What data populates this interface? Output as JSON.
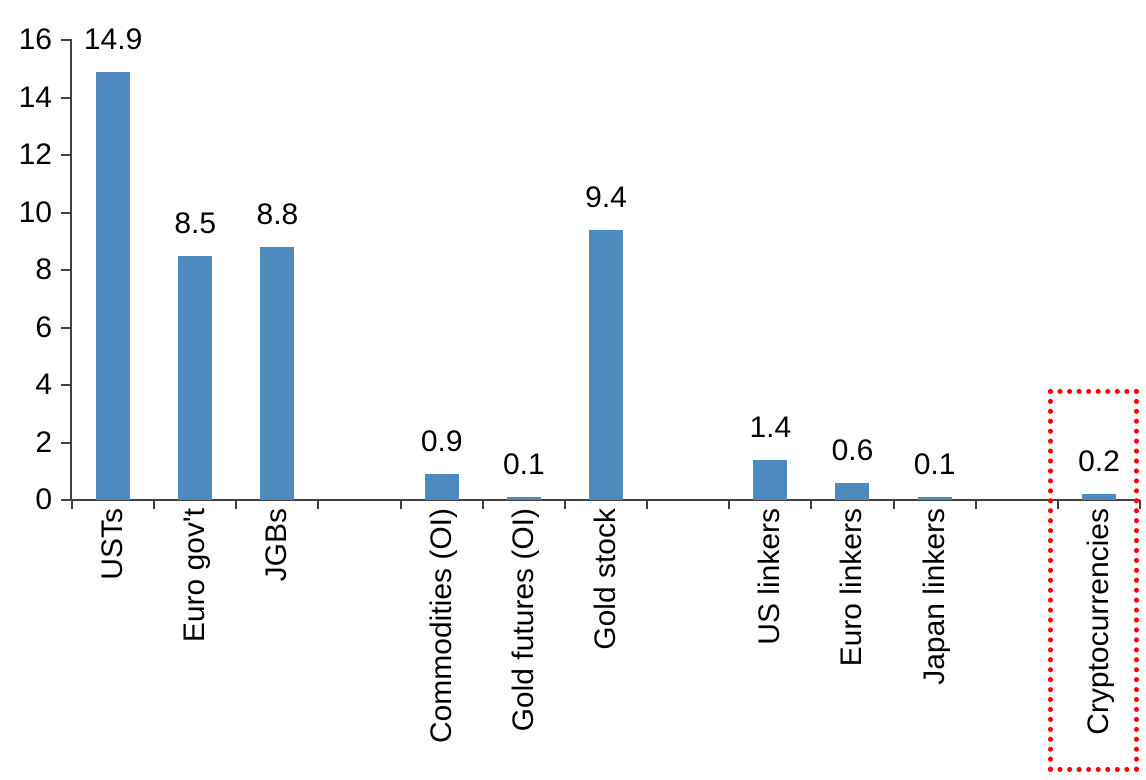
{
  "chart_data": {
    "type": "bar",
    "title": "",
    "categories": [
      "USTs",
      "Euro gov't",
      "JGBs",
      "Commodities (OI)",
      "Gold futures (OI)",
      "Gold stock",
      "US linkers",
      "Euro linkers",
      "Japan linkers",
      "Cryptocurrencies"
    ],
    "values": [
      14.9,
      8.5,
      8.8,
      0.9,
      0.1,
      9.4,
      1.4,
      0.6,
      0.1,
      0.2
    ],
    "groups": [
      [
        "USTs",
        "Euro gov't",
        "JGBs"
      ],
      [
        "Commodities (OI)",
        "Gold futures (OI)",
        "Gold stock"
      ],
      [
        "US linkers",
        "Euro linkers",
        "Japan linkers"
      ],
      [
        "Cryptocurrencies"
      ]
    ],
    "highlighted_category": "Cryptocurrencies",
    "ylim": [
      0,
      16
    ],
    "yticks": [
      0,
      2,
      4,
      6,
      8,
      10,
      12,
      14,
      16
    ],
    "value_labels_shown": true,
    "value_label_format": "0.0",
    "grid": "off",
    "legend": "none",
    "bar_color": "#4E8ABD",
    "axis_color": "#404040",
    "text_color": "#000000",
    "highlight_box_color": "#FF0000"
  }
}
